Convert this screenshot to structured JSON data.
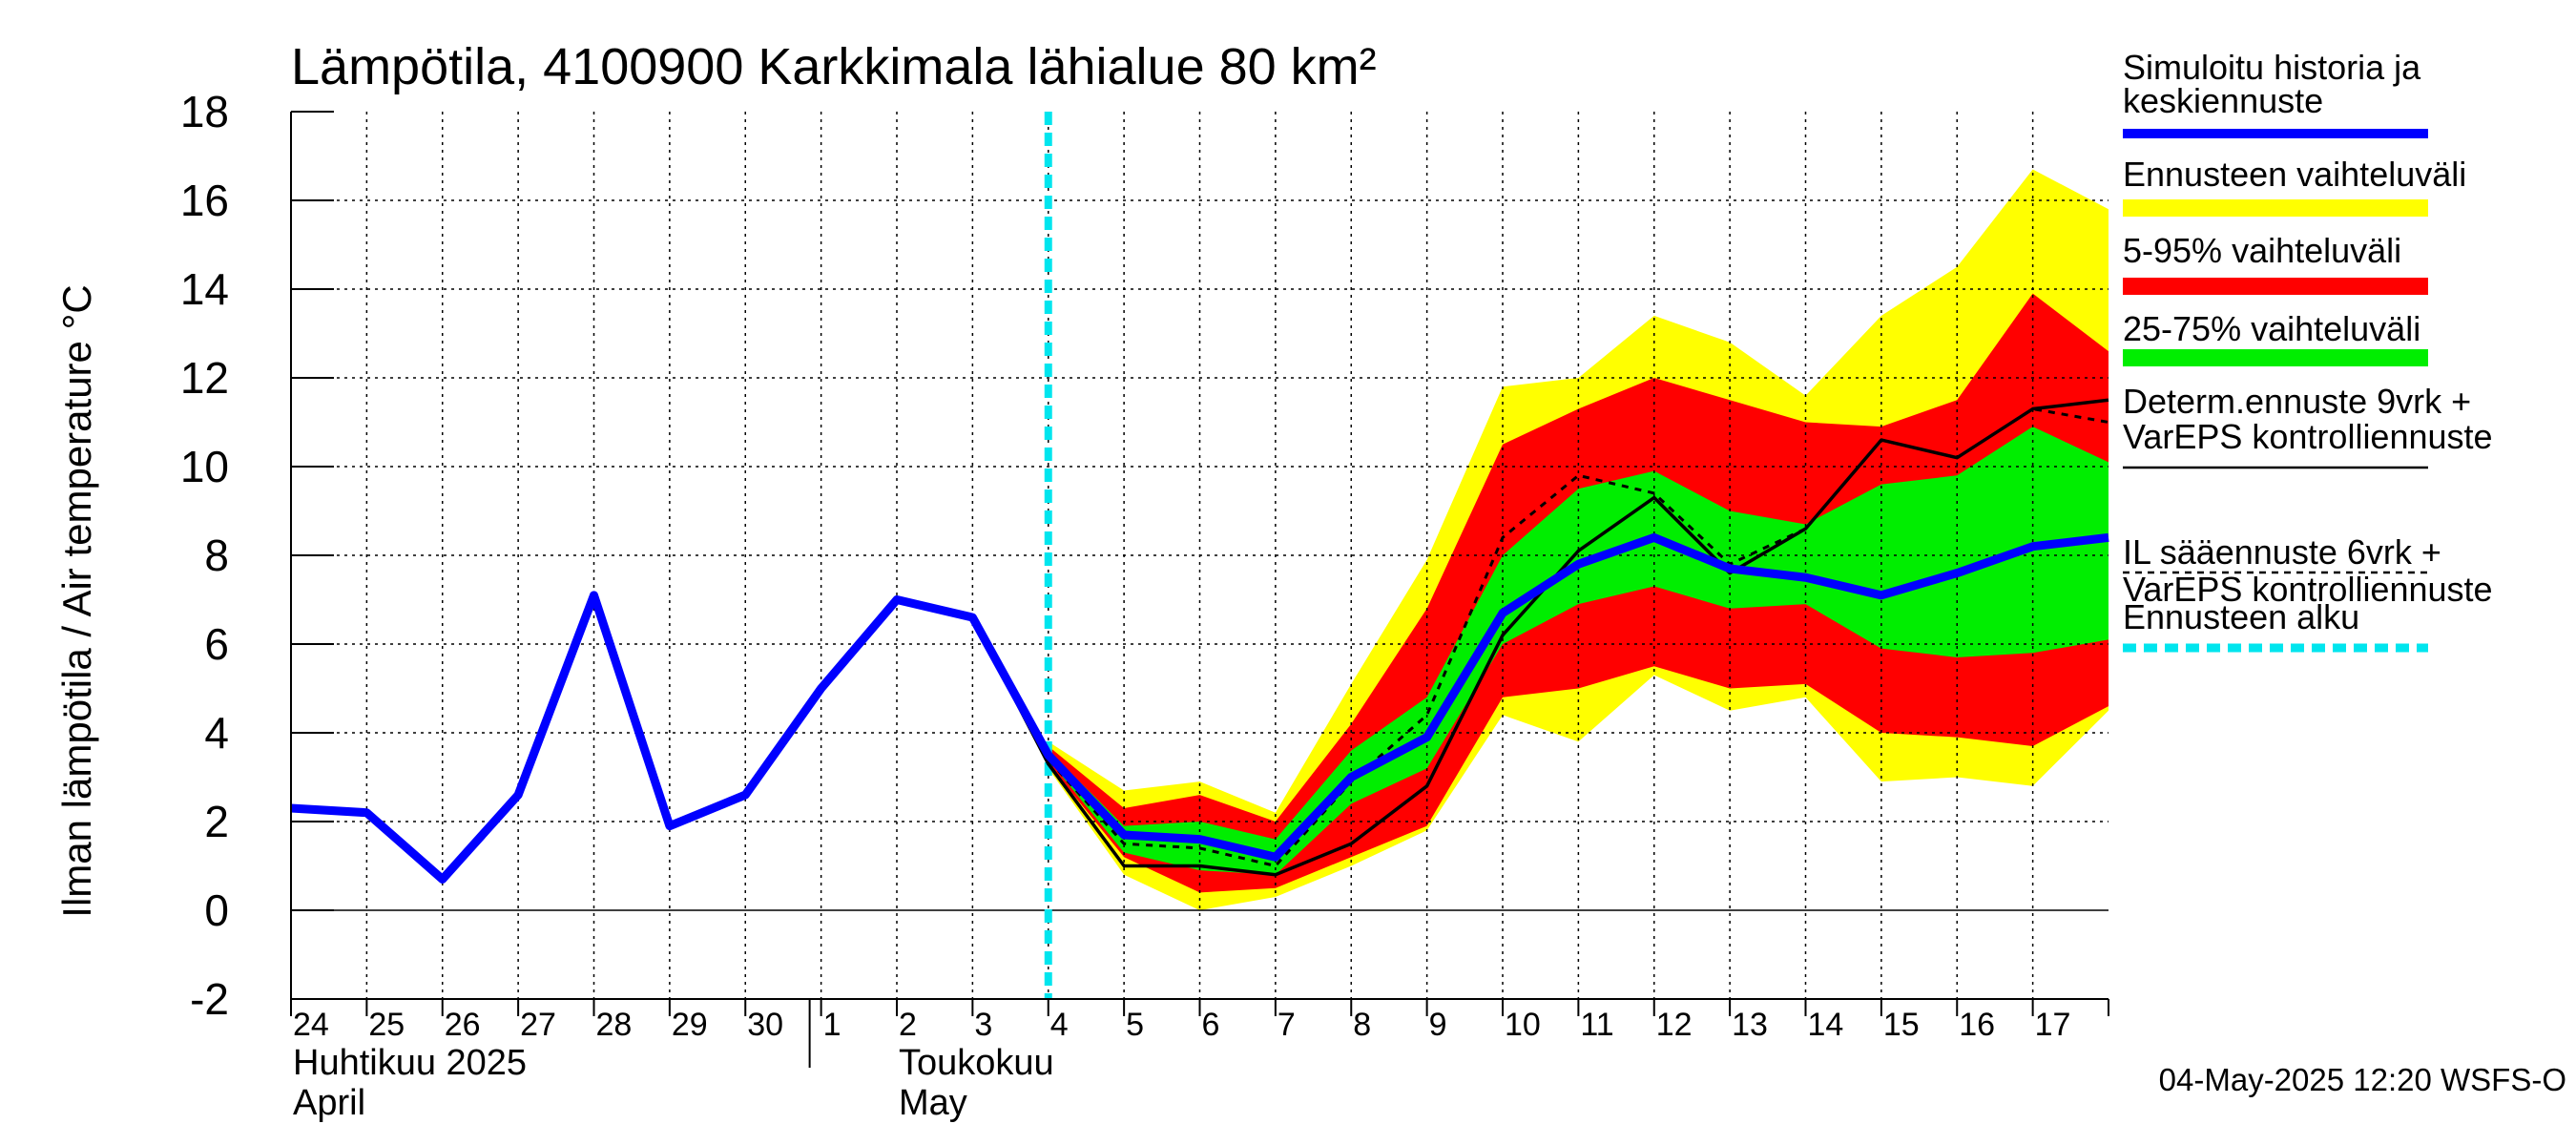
{
  "colors": {
    "background": "#ffffff",
    "grid": "#000000",
    "history": "#0000ff",
    "range_full": "#ffff00",
    "range_5_95": "#ff0000",
    "range_25_75": "#00ee00",
    "determ": "#000000",
    "il": "#000000",
    "forecast_start": "#00e5ee"
  },
  "chart_data": {
    "type": "area",
    "title": "Lämpötila, 4100900 Karkkimala lähialue 80 km²",
    "ylabel": "Ilman lämpötila / Air temperature   °C",
    "ylim": [
      -2,
      18
    ],
    "yticks": [
      "-2",
      "0",
      "2",
      "4",
      "6",
      "8",
      "10",
      "12",
      "14",
      "16",
      "18"
    ],
    "xlim": [
      0,
      24
    ],
    "day_labels": [
      "24",
      "25",
      "26",
      "27",
      "28",
      "29",
      "30",
      "1",
      "2",
      "3",
      "4",
      "5",
      "6",
      "7",
      "8",
      "9",
      "10",
      "11",
      "12",
      "13",
      "14",
      "15",
      "16",
      "17"
    ],
    "month_labels": [
      {
        "line1": "Huhtikuu  2025",
        "line2": "April",
        "day_index": 0
      },
      {
        "line1": "Toukokuu",
        "line2": "May",
        "day_index": 8
      }
    ],
    "month_separator_day": 7,
    "forecast_start_x": 10,
    "footer": "04-May-2025 12:20 WSFS-O",
    "series": [
      {
        "name": "Simuloitu historia ja keskiennuste",
        "x": [
          0,
          1,
          2,
          3,
          4,
          5,
          6,
          7,
          8,
          9,
          10,
          11,
          12,
          13,
          14,
          15,
          16,
          17,
          18,
          19,
          20,
          21,
          22,
          23,
          24
        ],
        "values": [
          2.3,
          2.2,
          0.7,
          2.6,
          7.1,
          1.9,
          2.6,
          5.0,
          7.0,
          6.6,
          3.5,
          1.7,
          1.6,
          1.2,
          3.0,
          3.9,
          6.7,
          7.8,
          8.4,
          7.7,
          7.5,
          7.1,
          7.6,
          8.2,
          8.4
        ]
      },
      {
        "name": "Determ.ennuste 9vrk + VarEPS kontrolliennuste",
        "x": [
          8,
          9,
          10,
          11,
          12,
          13,
          14,
          15,
          16,
          17,
          18,
          19,
          20,
          21,
          22,
          23,
          24
        ],
        "values": [
          7.0,
          6.6,
          3.3,
          1.0,
          1.0,
          0.8,
          1.5,
          2.8,
          6.2,
          8.1,
          9.3,
          7.6,
          8.6,
          10.6,
          10.2,
          11.3,
          11.5
        ]
      },
      {
        "name": "IL sääennuste 6vrk + VarEPS kontrolliennuste",
        "x": [
          8,
          9,
          10,
          11,
          12,
          13,
          14,
          15,
          16,
          17,
          18,
          19,
          20,
          21,
          22,
          23,
          24
        ],
        "values": [
          7.0,
          6.6,
          3.4,
          1.5,
          1.4,
          1.0,
          2.9,
          4.4,
          8.4,
          9.8,
          9.4,
          7.8,
          8.6,
          10.6,
          10.2,
          11.3,
          11.0
        ]
      }
    ],
    "bands": [
      {
        "name": "Ennusteen vaihteluväli",
        "x": [
          10,
          11,
          12,
          13,
          14,
          15,
          16,
          17,
          18,
          19,
          20,
          21,
          22,
          23,
          24
        ],
        "low": [
          3.2,
          0.8,
          0.0,
          0.3,
          1.0,
          1.8,
          4.4,
          3.8,
          5.3,
          4.5,
          4.8,
          2.9,
          3.0,
          2.8,
          4.5
        ],
        "high": [
          3.8,
          2.7,
          2.9,
          2.2,
          5.1,
          7.9,
          11.8,
          12.0,
          13.4,
          12.8,
          11.6,
          13.4,
          14.5,
          16.7,
          15.8
        ]
      },
      {
        "name": "5-95% vaihteluväli",
        "x": [
          10,
          11,
          12,
          13,
          14,
          15,
          16,
          17,
          18,
          19,
          20,
          21,
          22,
          23,
          24
        ],
        "low": [
          3.3,
          1.2,
          0.4,
          0.5,
          1.2,
          1.9,
          4.8,
          5.0,
          5.5,
          5.0,
          5.1,
          4.0,
          3.9,
          3.7,
          4.6
        ],
        "high": [
          3.7,
          2.3,
          2.6,
          2.0,
          4.2,
          6.8,
          10.5,
          11.3,
          12.0,
          11.5,
          11.0,
          10.9,
          11.5,
          13.9,
          12.6
        ]
      },
      {
        "name": "25-75% vaihteluväli",
        "x": [
          10,
          11,
          12,
          13,
          14,
          15,
          16,
          17,
          18,
          19,
          20,
          21,
          22,
          23,
          24
        ],
        "low": [
          3.4,
          1.3,
          0.9,
          0.8,
          2.4,
          3.2,
          6.0,
          6.9,
          7.3,
          6.8,
          6.9,
          5.9,
          5.7,
          5.8,
          6.1
        ],
        "high": [
          3.6,
          1.9,
          2.0,
          1.6,
          3.6,
          4.8,
          8.0,
          9.5,
          9.9,
          9.0,
          8.7,
          9.6,
          9.8,
          10.9,
          10.1
        ]
      }
    ],
    "legend": {
      "placement": "right",
      "items": [
        {
          "line1": "Simuloitu historia ja",
          "line2": "keskiennuste",
          "style": "history"
        },
        {
          "line1": "Ennusteen vaihteluväli",
          "line2": "",
          "style": "range_full"
        },
        {
          "line1": "5-95% vaihteluväli",
          "line2": "",
          "style": "range_5_95"
        },
        {
          "line1": "25-75% vaihteluväli",
          "line2": "",
          "style": "range_25_75"
        },
        {
          "line1": "Determ.ennuste 9vrk +",
          "line2": "VarEPS kontrolliennuste",
          "style": "determ"
        },
        {
          "line1": "IL sääennuste 6vrk  +",
          "line2": "  VarEPS kontrolliennuste",
          "style": "il"
        },
        {
          "line1": "Ennusteen alku",
          "line2": "",
          "style": "forecast_start"
        }
      ]
    }
  }
}
